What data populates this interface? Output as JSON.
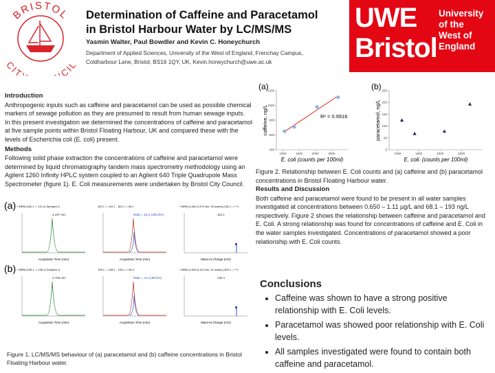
{
  "logo": {
    "top": "BRISTOL",
    "bottom": "CITY COUNCIL"
  },
  "header": {
    "title_lines": [
      "Determination of Caffeine and Paracetamol",
      "in Bristol Harbour Water by LC/MS/MS"
    ],
    "authors": "Yasmin Walter, Paul Bowdler and Kevin C. Honeychurch",
    "affiliation_lines": [
      "Department of Applied Sciences, University of the West of England, Frenchay Campus,",
      "Coldharbour Lane, Bristol, BS16 1QY, UK, Kevin.honeychurch@uwe.ac.uk"
    ]
  },
  "uwe": {
    "wordmark": [
      "UWE",
      "Bristol"
    ],
    "name": [
      "University",
      "of the",
      "West of",
      "England"
    ]
  },
  "introduction": {
    "heading": "Introduction",
    "paragraphs": [
      "Anthropogenic inputs such as caffeine and paracetamol can be used as possible chemical markers of sewage pollution as they are presumed to result from human sewage inputs.",
      "In this present investigation we determined the concentrations of caffeine and paracetamol at five sample points within Bristol Floating Harbour, UK and compared these with the levels of Escherichia coli (E. coli) present."
    ]
  },
  "methods": {
    "heading": "Methods",
    "paragraph": "Following solid phase extraction the concentrations of caffeine and paracetamol were determined by liquid chromatography tandem mass spectrometry methodology using an Agilent 1260 Infinity HPLC system coupled to an Agilent 640 Triple Quadrupole Mass Spectrometer (figure 1). E. Coli measurements were undertaken by Bristol City Council."
  },
  "figure1": {
    "rows": [
      {
        "label": "(a)",
        "plots": [
          {
            "title": "+ MRM (152.1 -> 110.1) Sample1.d",
            "note": "4.297 min",
            "xlabel": "Acquisition Time (min)"
          },
          {
            "title": "152.1 -> 110.1 , 152.1 -> 65.1",
            "note": "Ratio = 52.4 (100.8%)",
            "xlabel": "Acquisition Time (min)"
          },
          {
            "title": "+ MRM (4.264-4.375 min, 15 scans) (152.1 -> **)",
            "note": "110.1",
            "xlabel": "Mass-to-Charge (m/z)"
          }
        ]
      },
      {
        "label": "(b)",
        "plots": [
          {
            "title": "+ MRM (195.1 -> 138.1) Sample1.d",
            "note": "4.766 min",
            "xlabel": "Acquisition Time (min)"
          },
          {
            "title": "195.1 -> 138.1 , 195.1 -> 56.2",
            "note": "Ratio = 11.2 (89.5%)",
            "xlabel": "Acquisition Time (min)"
          },
          {
            "title": "+ MRM (4.543-5.113 min, 22 scans) (195.1 -> **)",
            "note": "138.1",
            "xlabel": "Mass-to-Charge (m/z)"
          }
        ]
      }
    ],
    "caption": "Figure 1.  LC/MS/MS behaviour of (a) paracetamol and (b) caffeine concentrations in Bristol Floating Harbour water."
  },
  "figure2": {
    "panel_a": {
      "label": "(a)",
      "ylabel": "caffeine, ng/L",
      "xlabel": "E. coli (counts per 100ml)",
      "annotation": "R² = 0.9916",
      "x": [
        1050,
        1350,
        2050,
        2700
      ],
      "y": [
        650,
        710,
        980,
        1110
      ],
      "color": "#8db4e2",
      "trend_color": "#e0261b",
      "xlim": [
        800,
        3000
      ],
      "xticks": [
        1000,
        1500,
        2000,
        2500
      ],
      "ylim": [
        400,
        1200
      ],
      "yticks": [
        400,
        600,
        800,
        1000,
        1200
      ]
    },
    "panel_b": {
      "label": "(b)",
      "ylabel": "paracetamol, ng/L",
      "xlabel": "E. coli. (counts per 100ml)",
      "x": [
        1100,
        1400,
        2100,
        2700
      ],
      "y": [
        125,
        68,
        78,
        193
      ],
      "color": "#1f2f4f",
      "xlim": [
        800,
        3000
      ],
      "xticks": [
        1000,
        1500,
        2000,
        2500
      ],
      "ylim": [
        0,
        250
      ],
      "yticks": [
        0,
        50,
        100,
        150,
        200,
        250
      ]
    },
    "caption": "Figure 2.  Relationship between E. Coli counts and (a) caffeine and (b) paracetamol concentrations in Bristol Floating Harbour water."
  },
  "results": {
    "heading": "Results and Discussion",
    "paragraph": "Both caffeine and paracetamol were found to be present in all water samples investigated at concentrations between 0.650 – 1.11 µg/L and 68.1 – 193 ng/L respectively.  Figure 2 shows the relationship between caffeine and paracetamol and E. Coli.  A strong relationship was found for concentrations of caffeine and E. Coli in the water samples investigated. Concentrations of paracetamol showed a poor relationship with E. Coli counts."
  },
  "conclusions": {
    "heading": "Conclusions",
    "bullets": [
      "Caffeine was shown to have a strong positive relationship with E. Coli levels.",
      "Paracetamol was showed poor relationship with E. Coli levels.",
      "All samples investigated were found to contain both caffeine and paracetamol."
    ]
  }
}
